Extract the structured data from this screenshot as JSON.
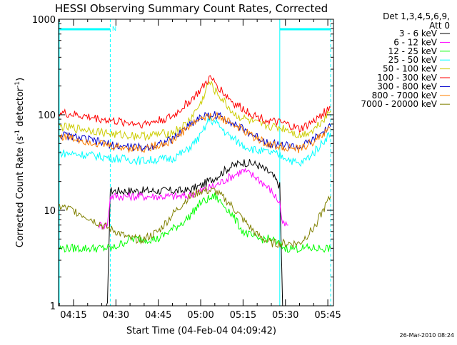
{
  "chart_data": {
    "type": "line",
    "title": "HESSI Observing Summary Count Rates, Corrected",
    "xlabel": "Start Time (04-Feb-04 04:09:42)",
    "ylabel": "Corrected Count Rate (s",
    "ylabel_sup1": "-1",
    "ylabel_mid": " detector",
    "ylabel_sup2": "-1",
    "ylabel_end": ")",
    "yscale": "log",
    "ylim": [
      1,
      1000
    ],
    "xlim": [
      "04:09:42",
      "05:47:00"
    ],
    "y_ticks": [
      "1",
      "10",
      "100",
      "1000"
    ],
    "x_ticks": [
      "04:15",
      "04:30",
      "04:45",
      "05:00",
      "05:15",
      "05:30",
      "05:45"
    ],
    "legend_header": [
      "Det 1,3,4,5,6,9,",
      "Att 0"
    ],
    "legend_position": "right",
    "timestamp": "26-Mar-2010 08:24",
    "night_marker": "N",
    "series": [
      {
        "name": "3 - 6 keV",
        "color": "#000000",
        "x": [
          "04:10",
          "04:27",
          "04:28",
          "04:29",
          "04:35",
          "04:45",
          "04:55",
          "05:00",
          "05:05",
          "05:10",
          "05:15",
          "05:20",
          "05:25",
          "05:28",
          "05:29",
          "05:30",
          "05:40",
          "05:46"
        ],
        "y": [
          1,
          1,
          16,
          16,
          16,
          16,
          16,
          18,
          22,
          28,
          32,
          30,
          24,
          18,
          1,
          1,
          1,
          1
        ]
      },
      {
        "name": "6 - 12 keV",
        "color": "#ff00ff",
        "x": [
          "04:24",
          "04:27",
          "04:28",
          "04:29",
          "04:35",
          "04:45",
          "04:55",
          "05:00",
          "05:05",
          "05:10",
          "05:15",
          "05:20",
          "05:25",
          "05:28",
          "05:29",
          "05:31"
        ],
        "y": [
          7,
          7,
          14,
          14,
          14,
          14,
          14,
          16,
          18,
          22,
          26,
          22,
          16,
          12,
          7,
          7
        ]
      },
      {
        "name": "12 - 25 keV",
        "color": "#00ff00",
        "x": [
          "04:10",
          "04:20",
          "04:25",
          "04:29",
          "04:35",
          "04:45",
          "04:55",
          "05:00",
          "05:05",
          "05:10",
          "05:15",
          "05:20",
          "05:25",
          "05:30",
          "05:40",
          "05:46"
        ],
        "y": [
          4,
          4,
          4,
          4,
          5,
          5,
          8,
          12,
          14,
          10,
          6,
          5,
          5,
          4,
          4,
          4
        ]
      },
      {
        "name": "25 - 50 keV",
        "color": "#00ffff",
        "x": [
          "04:10",
          "04:20",
          "04:30",
          "04:40",
          "04:50",
          "04:55",
          "05:00",
          "05:03",
          "05:06",
          "05:10",
          "05:15",
          "05:20",
          "05:25",
          "05:30",
          "05:35",
          "05:40",
          "05:46"
        ],
        "y": [
          40,
          38,
          35,
          33,
          35,
          42,
          60,
          90,
          80,
          60,
          48,
          42,
          40,
          36,
          30,
          40,
          65
        ]
      },
      {
        "name": "50 - 100 keV",
        "color": "#cccc00",
        "x": [
          "04:10",
          "04:20",
          "04:30",
          "04:40",
          "04:50",
          "04:55",
          "05:00",
          "05:03",
          "05:05",
          "05:08",
          "05:12",
          "05:20",
          "05:25",
          "05:30",
          "05:35",
          "05:40",
          "05:46"
        ],
        "y": [
          75,
          70,
          62,
          60,
          65,
          80,
          130,
          220,
          180,
          140,
          100,
          80,
          75,
          72,
          60,
          70,
          110
        ]
      },
      {
        "name": "100 - 300 keV",
        "color": "#ff0000",
        "x": [
          "04:10",
          "04:20",
          "04:30",
          "04:40",
          "04:50",
          "04:55",
          "05:00",
          "05:03",
          "05:05",
          "05:08",
          "05:12",
          "05:20",
          "05:25",
          "05:30",
          "05:35",
          "05:40",
          "05:46"
        ],
        "y": [
          105,
          95,
          85,
          80,
          95,
          130,
          180,
          240,
          220,
          170,
          130,
          95,
          85,
          80,
          70,
          85,
          120
        ]
      },
      {
        "name": "300 - 800 keV",
        "color": "#0000cc",
        "x": [
          "04:10",
          "04:20",
          "04:30",
          "04:40",
          "04:50",
          "04:55",
          "05:00",
          "05:05",
          "05:10",
          "05:15",
          "05:20",
          "05:25",
          "05:30",
          "05:35",
          "05:40",
          "05:46"
        ],
        "y": [
          62,
          55,
          47,
          45,
          55,
          75,
          95,
          100,
          88,
          70,
          58,
          50,
          48,
          45,
          55,
          75
        ]
      },
      {
        "name": "800 - 7000 keV",
        "color": "#ff8000",
        "x": [
          "04:10",
          "04:20",
          "04:30",
          "04:40",
          "04:50",
          "04:55",
          "05:00",
          "05:05",
          "05:10",
          "05:15",
          "05:20",
          "05:25",
          "05:30",
          "05:35",
          "05:40",
          "05:46"
        ],
        "y": [
          60,
          53,
          46,
          44,
          53,
          72,
          92,
          97,
          86,
          68,
          56,
          48,
          46,
          43,
          53,
          72
        ]
      },
      {
        "name": "7000 - 20000 keV",
        "color": "#808000",
        "x": [
          "04:10",
          "04:15",
          "04:20",
          "04:25",
          "04:30",
          "04:35",
          "04:40",
          "04:45",
          "04:50",
          "04:55",
          "05:00",
          "05:05",
          "05:10",
          "05:15",
          "05:20",
          "05:25",
          "05:30",
          "05:35",
          "05:40",
          "05:46"
        ],
        "y": [
          11,
          10,
          8.5,
          7,
          6,
          5,
          5,
          6,
          9,
          13,
          16,
          16,
          12,
          8,
          5.5,
          4.5,
          4.5,
          4.5,
          6.5,
          14
        ]
      }
    ]
  }
}
